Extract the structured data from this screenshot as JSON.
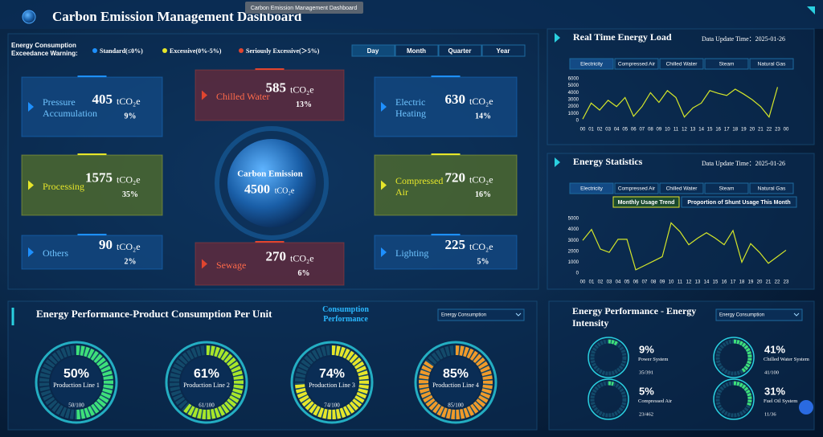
{
  "header": {
    "title": "Carbon Emission Management Dashboard",
    "tooltip": "Carbon Emission Management Dashboard"
  },
  "warning": {
    "label": "Energy Consumption Exceedance Warning:",
    "levels": [
      {
        "name": "Standard(≤0%)",
        "color": "#1e90ff"
      },
      {
        "name": "Excessive(0%-5%)",
        "color": "#e6e62a"
      },
      {
        "name": "Seriously Excessive(＞5%)",
        "color": "#e0452f"
      }
    ]
  },
  "periods": [
    "Day",
    "Month",
    "Quarter",
    "Year"
  ],
  "unit": "tCO₂e",
  "total": {
    "label": "Carbon Emission",
    "value": 4500
  },
  "sources": [
    {
      "name": "Pressure Accumulation",
      "value": 405,
      "share": "9%",
      "color": "#1e90ff"
    },
    {
      "name": "Chilled Water",
      "value": 585,
      "share": "13%",
      "color": "#e0452f"
    },
    {
      "name": "Electric Heating",
      "value": 630,
      "share": "14%",
      "color": "#1e90ff"
    },
    {
      "name": "Processing",
      "value": 1575,
      "share": "35%",
      "color": "#e6e62a"
    },
    {
      "name": "Compressed Air",
      "value": 720,
      "share": "16%",
      "color": "#e6e62a"
    },
    {
      "name": "Others",
      "value": 90,
      "share": "2%",
      "color": "#1e90ff"
    },
    {
      "name": "Sewage",
      "value": 270,
      "share": "6%",
      "color": "#e0452f"
    },
    {
      "name": "Lighting",
      "value": 225,
      "share": "5%",
      "color": "#1e90ff"
    }
  ],
  "chart_data": [
    {
      "type": "line",
      "title": "Real Time Energy Load",
      "subtitle": "Data Update Time：2025-01-26",
      "tabs": [
        "Electricity",
        "Compressed Air",
        "Chilled Water",
        "Steam",
        "Natural Gas"
      ],
      "categories": [
        "00",
        "01",
        "02",
        "03",
        "04",
        "05",
        "06",
        "07",
        "08",
        "09",
        "10",
        "11",
        "12",
        "13",
        "14",
        "15",
        "16",
        "17",
        "18",
        "19",
        "20",
        "21",
        "22",
        "23",
        "00"
      ],
      "values": [
        200,
        2500,
        1500,
        2900,
        2000,
        3300,
        600,
        2000,
        4000,
        2600,
        4300,
        3300,
        500,
        1800,
        2500,
        4300,
        3900,
        3600,
        4500,
        3800,
        3000,
        2000,
        500,
        4800,
        null
      ],
      "color": "#d4e62a",
      "ylim": [
        0,
        6000
      ],
      "yticks": [
        0,
        1000,
        2000,
        3000,
        4000,
        5000,
        6000
      ],
      "grid": false
    },
    {
      "type": "line",
      "title": "Energy Statistics",
      "subtitle": "Data Update Time：2025-01-26",
      "tabs": [
        "Electricity",
        "Compressed Air",
        "Chilled Water",
        "Steam",
        "Natural Gas"
      ],
      "subtabs": [
        "Monthly Usage Trend",
        "Proportion of Shunt Usage This Month"
      ],
      "categories": [
        "00",
        "01",
        "02",
        "03",
        "04",
        "05",
        "06",
        "07",
        "08",
        "09",
        "10",
        "11",
        "12",
        "13",
        "14",
        "15",
        "16",
        "17",
        "18",
        "19",
        "20",
        "21",
        "22",
        "23"
      ],
      "values": [
        3000,
        4000,
        2200,
        1900,
        3100,
        3100,
        300,
        700,
        1100,
        1500,
        4600,
        3800,
        2600,
        3200,
        3700,
        3200,
        2600,
        3900,
        1000,
        2700,
        1900,
        900,
        1500,
        2100
      ],
      "color": "#d4e62a",
      "ylim": [
        0,
        5000
      ],
      "yticks": [
        0,
        1000,
        2000,
        3000,
        4000,
        5000
      ],
      "grid": false
    }
  ],
  "performance": {
    "title": "Energy Performance-Product Consumption Per Unit",
    "subtitle": "Consumption Performance",
    "dropdown": "Energy Consumption",
    "gauges": [
      {
        "name": "Production Line 1",
        "value": 50,
        "value_label": "50%",
        "ratio": "50/100",
        "color": "#3ee07a"
      },
      {
        "name": "Production Line 2",
        "value": 61,
        "value_label": "61%",
        "ratio": "61/100",
        "color": "#a8e62a"
      },
      {
        "name": "Production Line 3",
        "value": 74,
        "value_label": "74%",
        "ratio": "74/100",
        "color": "#e6e62a"
      },
      {
        "name": "Production Line 4",
        "value": 85,
        "value_label": "85%",
        "ratio": "85/100",
        "color": "#f09a2a"
      }
    ]
  },
  "intensity": {
    "title": "Energy Performance - Energy Intensity",
    "dropdown": "Energy Consumption",
    "items": [
      {
        "name": "Power System",
        "value": 9,
        "value_label": "9%",
        "ratio": "35/391"
      },
      {
        "name": "Chilled Water System",
        "value": 41,
        "value_label": "41%",
        "ratio": "41/100"
      },
      {
        "name": "Compressed Air",
        "value": 5,
        "value_label": "5%",
        "ratio": "23/462"
      },
      {
        "name": "Fuel Oil System",
        "value": 31,
        "value_label": "31%",
        "ratio": "11/36"
      }
    ]
  }
}
